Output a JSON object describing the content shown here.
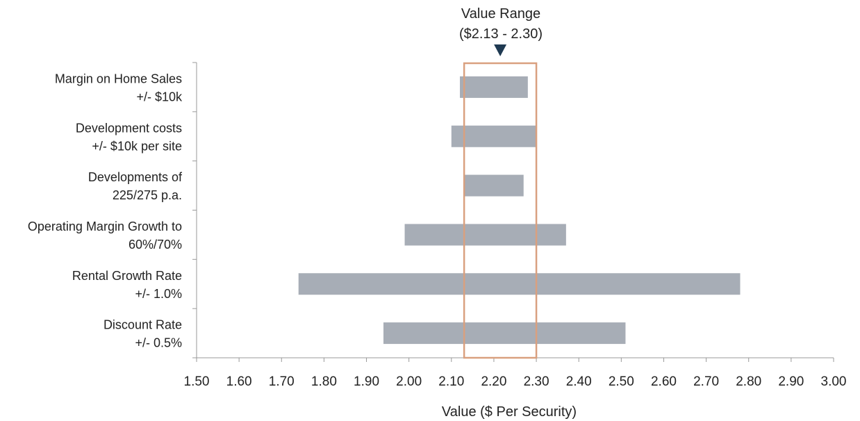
{
  "chart_data": {
    "type": "bar",
    "orientation": "horizontal-range",
    "xlabel": "Value ($ Per Security)",
    "xlim": [
      1.5,
      3.0
    ],
    "xticks": [
      "1.50",
      "1.60",
      "1.70",
      "1.80",
      "1.90",
      "2.00",
      "2.10",
      "2.20",
      "2.30",
      "2.40",
      "2.50",
      "2.60",
      "2.70",
      "2.80",
      "2.90",
      "3.00"
    ],
    "categories": [
      {
        "line1": "Margin on Home Sales",
        "line2": "+/- $10k"
      },
      {
        "line1": "Development costs",
        "line2": "+/- $10k per site"
      },
      {
        "line1": "Developments of",
        "line2": "225/275 p.a."
      },
      {
        "line1": "Operating Margin Growth to",
        "line2": "60%/70%"
      },
      {
        "line1": "Rental Growth Rate",
        "line2": "+/- 1.0%"
      },
      {
        "line1": "Discount Rate",
        "line2": "+/- 0.5%"
      }
    ],
    "ranges": [
      [
        2.12,
        2.28
      ],
      [
        2.1,
        2.3
      ],
      [
        2.13,
        2.27
      ],
      [
        1.99,
        2.37
      ],
      [
        1.74,
        2.78
      ],
      [
        1.94,
        2.51
      ]
    ],
    "value_range": {
      "line1": "Value Range",
      "line2": "($2.13 - 2.30)",
      "low": 2.13,
      "high": 2.3,
      "marker": 2.215
    },
    "grid": false,
    "colors": {
      "bar": "#a7adb6",
      "range_box": "#d9a07f",
      "marker": "#1f3a52",
      "axis": "#999999"
    }
  }
}
